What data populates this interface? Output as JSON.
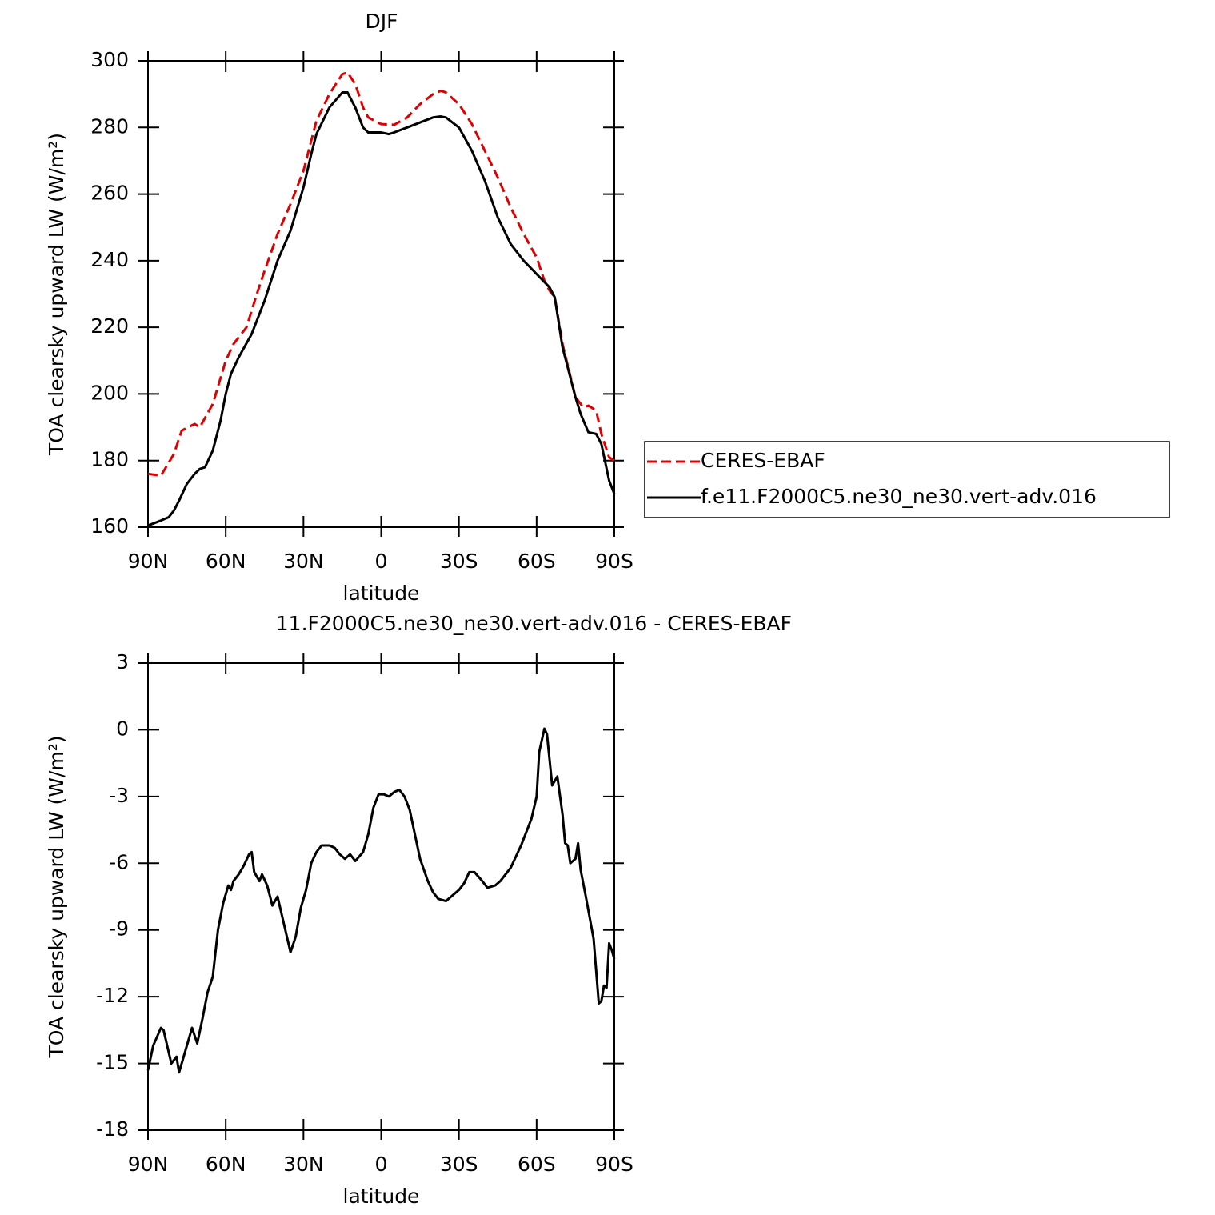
{
  "chart_data": [
    {
      "type": "line",
      "title": "DJF",
      "x_label": "latitude",
      "y_label": "TOA clearsky upward LW (W/m²)",
      "xlim": [
        90,
        -90
      ],
      "xticks": [
        {
          "value": 90,
          "label": "90N"
        },
        {
          "value": 60,
          "label": "60N"
        },
        {
          "value": 30,
          "label": "30N"
        },
        0,
        {
          "value": -30,
          "label": "30S"
        },
        {
          "value": -60,
          "label": "60S"
        },
        {
          "value": -90,
          "label": "90S"
        }
      ],
      "ylim": [
        160,
        300
      ],
      "yticks": [
        160,
        180,
        200,
        220,
        240,
        260,
        280,
        300
      ],
      "legend": "right",
      "series": [
        {
          "name": "CERES-EBAF",
          "color": "#e00000",
          "line_style": "dashed",
          "x": [
            90,
            85,
            80,
            77,
            72,
            70,
            65,
            60,
            57,
            52,
            48,
            45,
            40,
            35,
            30,
            25,
            20,
            15,
            13,
            10,
            7,
            5,
            0,
            -5,
            -10,
            -15,
            -20,
            -23,
            -25,
            -30,
            -35,
            -40,
            -45,
            -50,
            -55,
            -60,
            -63,
            -65,
            -67,
            -70,
            -75,
            -78,
            -80,
            -83,
            -85,
            -88,
            -90
          ],
          "values": [
            176,
            175.5,
            182,
            189,
            191,
            190,
            197,
            210,
            215,
            220,
            230,
            237,
            248,
            257,
            267,
            282,
            290,
            296,
            296.5,
            293,
            286,
            283,
            281,
            280.8,
            283,
            287,
            290,
            291,
            290.5,
            287,
            281,
            273,
            265,
            256,
            248,
            241,
            234,
            231,
            229,
            215,
            199,
            196,
            196.5,
            195,
            188,
            181,
            180
          ]
        },
        {
          "name": "f.e11.F2000C5.ne30_ne30.vert-adv.016",
          "color": "#000000",
          "line_style": "solid",
          "x": [
            90,
            85,
            82,
            80,
            78,
            75,
            72,
            70,
            68,
            65,
            62,
            60,
            58,
            55,
            50,
            45,
            40,
            35,
            30,
            27,
            25,
            20,
            15,
            13,
            10,
            7,
            5,
            0,
            -3,
            -5,
            -10,
            -15,
            -20,
            -23,
            -25,
            -30,
            -35,
            -40,
            -45,
            -50,
            -55,
            -60,
            -65,
            -67,
            -70,
            -75,
            -77,
            -80,
            -83,
            -85,
            -88,
            -90
          ],
          "values": [
            160.5,
            162,
            163,
            165,
            168,
            173,
            176,
            177.5,
            178,
            183,
            192,
            200,
            206,
            211,
            218,
            228,
            240,
            249,
            262,
            272,
            278,
            286,
            290.5,
            290.5,
            286,
            280,
            278.5,
            278.5,
            278,
            278.5,
            280,
            281.5,
            283,
            283.3,
            283,
            280,
            273,
            264,
            253,
            245,
            240,
            236,
            232,
            229,
            214,
            199,
            194,
            188.5,
            188,
            185,
            174,
            170
          ]
        }
      ]
    },
    {
      "type": "line",
      "title": "11.F2000C5.ne30_ne30.vert-adv.016 - CERES-EBAF",
      "x_label": "latitude",
      "y_label": "TOA clearsky upward LW (W/m²)",
      "xlim": [
        90,
        -90
      ],
      "xticks": [
        {
          "value": 90,
          "label": "90N"
        },
        {
          "value": 60,
          "label": "60N"
        },
        {
          "value": 30,
          "label": "30N"
        },
        0,
        {
          "value": -30,
          "label": "30S"
        },
        {
          "value": -60,
          "label": "60S"
        },
        {
          "value": -90,
          "label": "90S"
        }
      ],
      "ylim": [
        -18,
        3
      ],
      "yticks": [
        -18,
        -15,
        -12,
        -9,
        -6,
        -3,
        0,
        3
      ],
      "series": [
        {
          "color": "#000000",
          "line_style": "solid",
          "x": [
            90,
            88,
            85,
            84,
            82,
            81,
            79,
            78,
            76,
            73,
            71,
            69,
            67,
            65,
            63,
            61,
            59,
            58,
            57,
            55,
            53,
            51,
            50,
            49,
            47,
            46,
            44,
            42,
            40,
            37,
            35,
            33,
            31,
            29,
            27,
            25,
            23,
            20,
            18,
            16,
            14,
            12,
            10,
            7,
            5,
            3,
            1,
            -1,
            -3,
            -5,
            -7,
            -9,
            -11,
            -13,
            -15,
            -18,
            -20,
            -22,
            -25,
            -27,
            -30,
            -32,
            -34,
            -36,
            -39,
            -41,
            -44,
            -46,
            -50,
            -54,
            -58,
            -60,
            -61,
            -63,
            -64,
            -66,
            -68,
            -70,
            -71,
            -72,
            -73,
            -75,
            -76,
            -77,
            -79,
            -82,
            -84,
            -85,
            -86,
            -87,
            -88,
            -89,
            -90
          ],
          "values": [
            -15.3,
            -14.2,
            -13.4,
            -13.5,
            -14.5,
            -15,
            -14.7,
            -15.4,
            -14.6,
            -13.4,
            -14.1,
            -13,
            -11.8,
            -11.1,
            -9,
            -7.8,
            -7,
            -7.2,
            -6.8,
            -6.5,
            -6.1,
            -5.6,
            -5.5,
            -6.4,
            -6.8,
            -6.5,
            -7,
            -7.9,
            -7.5,
            -9,
            -10,
            -9.3,
            -8,
            -7.2,
            -6,
            -5.5,
            -5.2,
            -5.2,
            -5.3,
            -5.6,
            -5.8,
            -5.6,
            -5.9,
            -5.5,
            -4.7,
            -3.5,
            -2.9,
            -2.9,
            -3,
            -2.8,
            -2.7,
            -3,
            -3.6,
            -4.7,
            -5.8,
            -6.8,
            -7.3,
            -7.6,
            -7.7,
            -7.5,
            -7.2,
            -6.9,
            -6.4,
            -6.4,
            -6.8,
            -7.1,
            -7,
            -6.8,
            -6.2,
            -5.2,
            -4,
            -3,
            -1,
            0.05,
            -0.2,
            -2.5,
            -2.1,
            -3.8,
            -5.1,
            -5.2,
            -6,
            -5.8,
            -5.1,
            -6.3,
            -7.5,
            -9.4,
            -12.3,
            -12.2,
            -11.5,
            -11.6,
            -9.6,
            -9.9,
            -10.3
          ]
        }
      ]
    }
  ]
}
